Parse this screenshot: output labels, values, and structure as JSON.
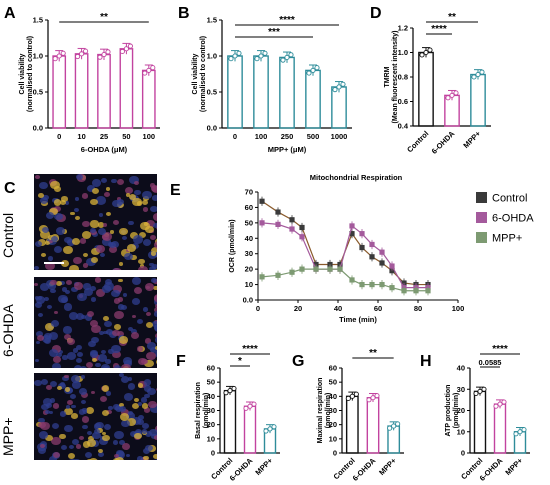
{
  "panels": {
    "A": {
      "label": "A",
      "chart_data": {
        "type": "bar",
        "categories": [
          "0",
          "10",
          "25",
          "50",
          "100"
        ],
        "values": [
          1.0,
          1.03,
          1.02,
          1.1,
          0.8
        ],
        "xlabel": "6-OHDA (μM)",
        "ylabel": "Cell viability (normalised to control)",
        "ylim": [
          0,
          1.5
        ],
        "yticks": [
          "0.0",
          "0.5",
          "1.0",
          "1.5"
        ],
        "significance": [
          {
            "label": "**",
            "from": "0",
            "to": "100"
          }
        ],
        "color": "#c2439f"
      }
    },
    "B": {
      "label": "B",
      "chart_data": {
        "type": "bar",
        "categories": [
          "0",
          "100",
          "250",
          "500",
          "1000"
        ],
        "values": [
          1.0,
          1.0,
          0.98,
          0.8,
          0.57
        ],
        "xlabel": "MPP+ (μM)",
        "ylabel": "Cell viability (normalised to control)",
        "ylim": [
          0,
          1.5
        ],
        "yticks": [
          "0.0",
          "0.5",
          "1.0",
          "1.5"
        ],
        "significance": [
          {
            "label": "****",
            "from": "0",
            "to": "1000"
          },
          {
            "label": "***",
            "from": "0",
            "to": "500"
          }
        ],
        "color": "#2e8c9a"
      }
    },
    "D": {
      "label": "D",
      "chart_data": {
        "type": "bar",
        "categories": [
          "Control",
          "6-OHDA",
          "MPP+"
        ],
        "values": [
          1.0,
          0.65,
          0.82
        ],
        "ylabel": "TMRM (Mean fluorescent intensity)",
        "ylim": [
          0.4,
          1.2
        ],
        "yticks": [
          "0.4",
          "0.6",
          "0.8",
          "1.0",
          "1.2"
        ],
        "significance": [
          {
            "label": "**",
            "from": "Control",
            "to": "MPP+"
          },
          {
            "label": "****",
            "from": "Control",
            "to": "6-OHDA"
          }
        ]
      }
    },
    "E": {
      "label": "E",
      "chart_data": {
        "type": "line",
        "title": "Mitochondrial Respiration",
        "xlabel": "Time (min)",
        "ylabel": "OCR (pmol/min)",
        "xlim": [
          0,
          100
        ],
        "ylim": [
          0,
          70
        ],
        "xticks": [
          "0",
          "20",
          "40",
          "60",
          "80",
          "100"
        ],
        "yticks": [
          "0.0",
          "10",
          "20",
          "30",
          "40",
          "50",
          "60",
          "70"
        ],
        "x": [
          2,
          10,
          17,
          22,
          29,
          36,
          41,
          47,
          52,
          57,
          62,
          67,
          73,
          79,
          85
        ],
        "series": [
          {
            "name": "Control",
            "values": [
              64,
              57,
              52,
              47,
              23,
              23,
              23,
              43,
              34,
              28,
              24,
              19,
              11,
              10,
              10
            ]
          },
          {
            "name": "6-OHDA",
            "values": [
              50,
              49,
              46,
              41,
              20,
              20,
              20,
              48,
              43,
              36,
              31,
              22,
              8,
              8,
              8
            ]
          },
          {
            "name": "MPP+",
            "values": [
              15,
              16,
              18,
              20,
              20,
              20,
              20,
              13,
              10,
              10,
              10,
              8,
              6,
              6,
              6
            ]
          }
        ]
      }
    },
    "F": {
      "label": "F",
      "chart_data": {
        "type": "bar",
        "categories": [
          "Control",
          "6-OHDA",
          "MPP+"
        ],
        "values": [
          44,
          33,
          17
        ],
        "ylabel": "Basal respiration (pmol/min)",
        "ylim": [
          0,
          60
        ],
        "yticks": [
          "0",
          "10",
          "20",
          "30",
          "40",
          "50",
          "60"
        ],
        "significance": [
          {
            "label": "****",
            "from": "Control",
            "to": "MPP+"
          },
          {
            "label": "*",
            "from": "Control",
            "to": "6-OHDA"
          }
        ]
      }
    },
    "G": {
      "label": "G",
      "chart_data": {
        "type": "bar",
        "categories": [
          "Control",
          "6-OHDA",
          "MPP+"
        ],
        "values": [
          40,
          39,
          19
        ],
        "ylabel": "Maximal respiration (pmol/min)",
        "ylim": [
          0,
          60
        ],
        "yticks": [
          "0",
          "10",
          "20",
          "30",
          "40",
          "50",
          "60"
        ],
        "significance": [
          {
            "label": "**",
            "from": "Control",
            "to": "MPP+"
          }
        ]
      }
    },
    "H": {
      "label": "H",
      "chart_data": {
        "type": "bar",
        "categories": [
          "Control",
          "6-OHDA",
          "MPP+"
        ],
        "values": [
          29,
          23,
          10
        ],
        "ylabel": "ATP production (pmol/min)",
        "ylim": [
          0,
          40
        ],
        "yticks": [
          "0",
          "10",
          "20",
          "30",
          "40"
        ],
        "significance": [
          {
            "label": "****",
            "from": "Control",
            "to": "MPP+"
          },
          {
            "label": "0.0585",
            "from": "Control",
            "to": "6-OHDA"
          }
        ]
      }
    },
    "C": {
      "label": "C",
      "rows": [
        "Control",
        "6-OHDA",
        "MPP+"
      ]
    }
  },
  "legend": [
    {
      "name": "Control",
      "color": "#3a3a3a"
    },
    {
      "name": "6-OHDA",
      "color": "#a45a9c"
    },
    {
      "name": "MPP+",
      "color": "#7d9a72"
    }
  ],
  "colors": {
    "control": "#111111",
    "ohda": "#c2439f",
    "mpp": "#2e8c9a"
  }
}
